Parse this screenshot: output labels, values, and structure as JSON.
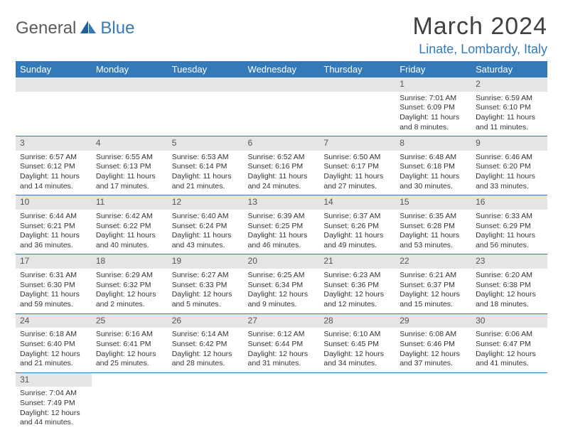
{
  "logo": {
    "textLeft": "General",
    "textRight": "Blue"
  },
  "title": "March 2024",
  "location": "Linate, Lombardy, Italy",
  "colors": {
    "header_bg": "#357ab8",
    "header_text": "#ffffff",
    "daynum_bg": "#e5e5e5",
    "daynum_text": "#555555",
    "border": "#357ab8",
    "logo_gray": "#5a5a5a",
    "logo_blue": "#357ab8"
  },
  "weekdays": [
    "Sunday",
    "Monday",
    "Tuesday",
    "Wednesday",
    "Thursday",
    "Friday",
    "Saturday"
  ],
  "weeks": [
    [
      null,
      null,
      null,
      null,
      null,
      {
        "n": "1",
        "sr": "7:01 AM",
        "ss": "6:09 PM",
        "dl": "11 hours and 8 minutes."
      },
      {
        "n": "2",
        "sr": "6:59 AM",
        "ss": "6:10 PM",
        "dl": "11 hours and 11 minutes."
      }
    ],
    [
      {
        "n": "3",
        "sr": "6:57 AM",
        "ss": "6:12 PM",
        "dl": "11 hours and 14 minutes."
      },
      {
        "n": "4",
        "sr": "6:55 AM",
        "ss": "6:13 PM",
        "dl": "11 hours and 17 minutes."
      },
      {
        "n": "5",
        "sr": "6:53 AM",
        "ss": "6:14 PM",
        "dl": "11 hours and 21 minutes."
      },
      {
        "n": "6",
        "sr": "6:52 AM",
        "ss": "6:16 PM",
        "dl": "11 hours and 24 minutes."
      },
      {
        "n": "7",
        "sr": "6:50 AM",
        "ss": "6:17 PM",
        "dl": "11 hours and 27 minutes."
      },
      {
        "n": "8",
        "sr": "6:48 AM",
        "ss": "6:18 PM",
        "dl": "11 hours and 30 minutes."
      },
      {
        "n": "9",
        "sr": "6:46 AM",
        "ss": "6:20 PM",
        "dl": "11 hours and 33 minutes."
      }
    ],
    [
      {
        "n": "10",
        "sr": "6:44 AM",
        "ss": "6:21 PM",
        "dl": "11 hours and 36 minutes."
      },
      {
        "n": "11",
        "sr": "6:42 AM",
        "ss": "6:22 PM",
        "dl": "11 hours and 40 minutes."
      },
      {
        "n": "12",
        "sr": "6:40 AM",
        "ss": "6:24 PM",
        "dl": "11 hours and 43 minutes."
      },
      {
        "n": "13",
        "sr": "6:39 AM",
        "ss": "6:25 PM",
        "dl": "11 hours and 46 minutes."
      },
      {
        "n": "14",
        "sr": "6:37 AM",
        "ss": "6:26 PM",
        "dl": "11 hours and 49 minutes."
      },
      {
        "n": "15",
        "sr": "6:35 AM",
        "ss": "6:28 PM",
        "dl": "11 hours and 53 minutes."
      },
      {
        "n": "16",
        "sr": "6:33 AM",
        "ss": "6:29 PM",
        "dl": "11 hours and 56 minutes."
      }
    ],
    [
      {
        "n": "17",
        "sr": "6:31 AM",
        "ss": "6:30 PM",
        "dl": "11 hours and 59 minutes."
      },
      {
        "n": "18",
        "sr": "6:29 AM",
        "ss": "6:32 PM",
        "dl": "12 hours and 2 minutes."
      },
      {
        "n": "19",
        "sr": "6:27 AM",
        "ss": "6:33 PM",
        "dl": "12 hours and 5 minutes."
      },
      {
        "n": "20",
        "sr": "6:25 AM",
        "ss": "6:34 PM",
        "dl": "12 hours and 9 minutes."
      },
      {
        "n": "21",
        "sr": "6:23 AM",
        "ss": "6:36 PM",
        "dl": "12 hours and 12 minutes."
      },
      {
        "n": "22",
        "sr": "6:21 AM",
        "ss": "6:37 PM",
        "dl": "12 hours and 15 minutes."
      },
      {
        "n": "23",
        "sr": "6:20 AM",
        "ss": "6:38 PM",
        "dl": "12 hours and 18 minutes."
      }
    ],
    [
      {
        "n": "24",
        "sr": "6:18 AM",
        "ss": "6:40 PM",
        "dl": "12 hours and 21 minutes."
      },
      {
        "n": "25",
        "sr": "6:16 AM",
        "ss": "6:41 PM",
        "dl": "12 hours and 25 minutes."
      },
      {
        "n": "26",
        "sr": "6:14 AM",
        "ss": "6:42 PM",
        "dl": "12 hours and 28 minutes."
      },
      {
        "n": "27",
        "sr": "6:12 AM",
        "ss": "6:44 PM",
        "dl": "12 hours and 31 minutes."
      },
      {
        "n": "28",
        "sr": "6:10 AM",
        "ss": "6:45 PM",
        "dl": "12 hours and 34 minutes."
      },
      {
        "n": "29",
        "sr": "6:08 AM",
        "ss": "6:46 PM",
        "dl": "12 hours and 37 minutes."
      },
      {
        "n": "30",
        "sr": "6:06 AM",
        "ss": "6:47 PM",
        "dl": "12 hours and 41 minutes."
      }
    ],
    [
      {
        "n": "31",
        "sr": "7:04 AM",
        "ss": "7:49 PM",
        "dl": "12 hours and 44 minutes."
      },
      null,
      null,
      null,
      null,
      null,
      null
    ]
  ],
  "labels": {
    "sunrise": "Sunrise: ",
    "sunset": "Sunset: ",
    "daylight": "Daylight: "
  }
}
